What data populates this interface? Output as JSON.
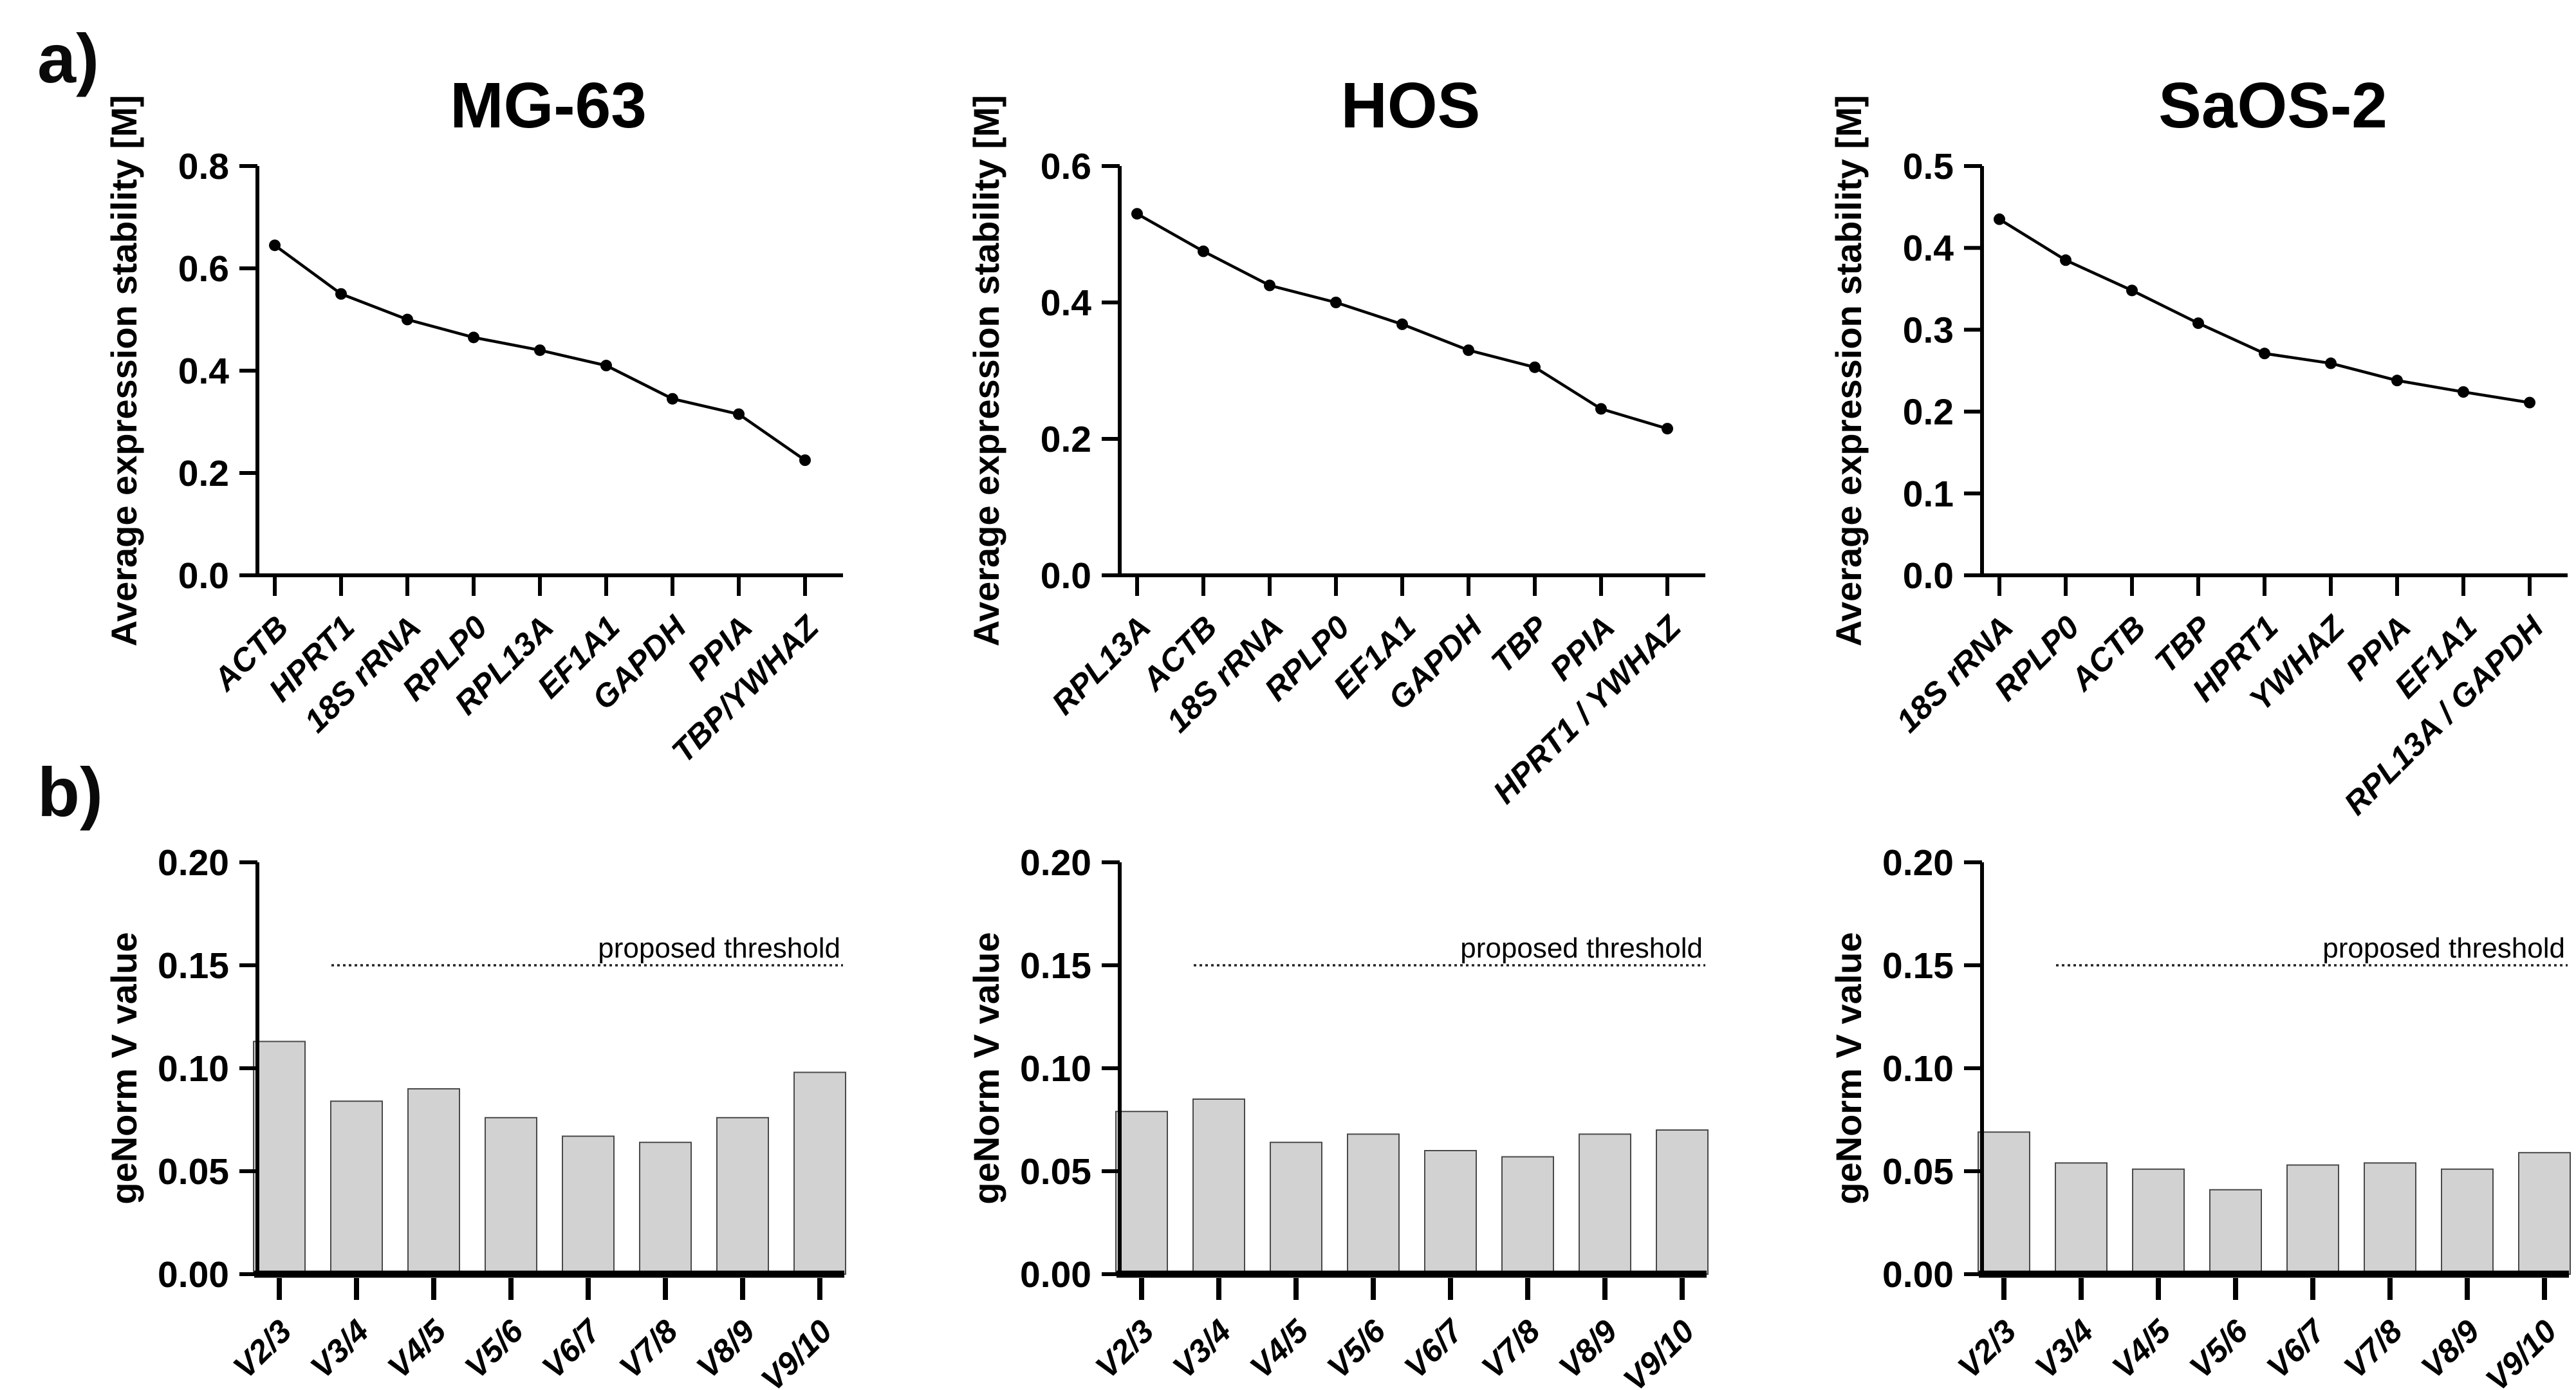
{
  "figure": {
    "panel_a_label": "a)",
    "panel_b_label": "b)",
    "colors": {
      "background": "#ffffff",
      "ink": "#000000",
      "bar_fill": "#d2d2d2",
      "bar_stroke": "#4a4a4a",
      "threshold_line": "#222222"
    }
  },
  "chart_data": [
    {
      "id": "mg63-stability",
      "panel": "a",
      "type": "line",
      "title": "MG-63",
      "ylabel": "Average expression stability [M]",
      "ylim": [
        0.0,
        0.8
      ],
      "grid": false,
      "yticks": [
        {
          "v": 0.0,
          "label": "0.0"
        },
        {
          "v": 0.2,
          "label": "0.2"
        },
        {
          "v": 0.4,
          "label": "0.4"
        },
        {
          "v": 0.6,
          "label": "0.6"
        },
        {
          "v": 0.8,
          "label": "0.8"
        }
      ],
      "categories": [
        "ACTB",
        "HPRT1",
        "18S rRNA",
        "RPLP0",
        "RPL13A",
        "EF1A1",
        "GAPDH",
        "PPIA",
        "TBP/YWHAZ"
      ],
      "values": [
        0.645,
        0.55,
        0.5,
        0.465,
        0.44,
        0.41,
        0.345,
        0.315,
        0.225
      ]
    },
    {
      "id": "hos-stability",
      "panel": "a",
      "type": "line",
      "title": "HOS",
      "ylabel": "Average expression stability [M]",
      "ylim": [
        0.0,
        0.6
      ],
      "grid": false,
      "yticks": [
        {
          "v": 0.0,
          "label": "0.0"
        },
        {
          "v": 0.2,
          "label": "0.2"
        },
        {
          "v": 0.4,
          "label": "0.4"
        },
        {
          "v": 0.6,
          "label": "0.6"
        }
      ],
      "categories": [
        "RPL13A",
        "ACTB",
        "18S rRNA",
        "RPLP0",
        "EF1A1",
        "GAPDH",
        "TBP",
        "PPIA",
        "HPRT1 / YWHAZ"
      ],
      "values": [
        0.53,
        0.475,
        0.425,
        0.4,
        0.368,
        0.33,
        0.305,
        0.244,
        0.215
      ]
    },
    {
      "id": "saos2-stability",
      "panel": "a",
      "type": "line",
      "title": "SaOS-2",
      "ylabel": "Average expression stability [M]",
      "ylim": [
        0.0,
        0.5
      ],
      "grid": false,
      "yticks": [
        {
          "v": 0.0,
          "label": "0.0"
        },
        {
          "v": 0.1,
          "label": "0.1"
        },
        {
          "v": 0.2,
          "label": "0.2"
        },
        {
          "v": 0.3,
          "label": "0.3"
        },
        {
          "v": 0.4,
          "label": "0.4"
        },
        {
          "v": 0.5,
          "label": "0.5"
        }
      ],
      "categories": [
        "18S rRNA",
        "RPLP0",
        "ACTB",
        "TBP",
        "HPRT1",
        "YWHAZ",
        "PPIA",
        "EF1A1",
        "RPL13A / GAPDH"
      ],
      "values": [
        0.435,
        0.385,
        0.348,
        0.308,
        0.271,
        0.259,
        0.238,
        0.224,
        0.211
      ]
    },
    {
      "id": "mg63-vvalue",
      "panel": "b",
      "type": "bar",
      "title": "",
      "ylabel": "geNorm V value",
      "ylim": [
        0.0,
        0.2
      ],
      "grid": false,
      "yticks": [
        {
          "v": 0.0,
          "label": "0.00"
        },
        {
          "v": 0.05,
          "label": "0.05"
        },
        {
          "v": 0.1,
          "label": "0.10"
        },
        {
          "v": 0.15,
          "label": "0.15"
        },
        {
          "v": 0.2,
          "label": "0.20"
        }
      ],
      "threshold": {
        "value": 0.15,
        "label": "proposed threshold"
      },
      "categories": [
        "V2/3",
        "V3/4",
        "V4/5",
        "V5/6",
        "V6/7",
        "V7/8",
        "V8/9",
        "V9/10"
      ],
      "values": [
        0.113,
        0.084,
        0.09,
        0.076,
        0.067,
        0.064,
        0.076,
        0.098
      ]
    },
    {
      "id": "hos-vvalue",
      "panel": "b",
      "type": "bar",
      "title": "",
      "ylabel": "geNorm V value",
      "ylim": [
        0.0,
        0.2
      ],
      "grid": false,
      "yticks": [
        {
          "v": 0.0,
          "label": "0.00"
        },
        {
          "v": 0.05,
          "label": "0.05"
        },
        {
          "v": 0.1,
          "label": "0.10"
        },
        {
          "v": 0.15,
          "label": "0.15"
        },
        {
          "v": 0.2,
          "label": "0.20"
        }
      ],
      "threshold": {
        "value": 0.15,
        "label": "proposed threshold"
      },
      "categories": [
        "V2/3",
        "V3/4",
        "V4/5",
        "V5/6",
        "V6/7",
        "V7/8",
        "V8/9",
        "V9/10"
      ],
      "values": [
        0.079,
        0.085,
        0.064,
        0.068,
        0.06,
        0.057,
        0.068,
        0.07
      ]
    },
    {
      "id": "saos2-vvalue",
      "panel": "b",
      "type": "bar",
      "title": "",
      "ylabel": "geNorm V value",
      "ylim": [
        0.0,
        0.2
      ],
      "grid": false,
      "yticks": [
        {
          "v": 0.0,
          "label": "0.00"
        },
        {
          "v": 0.05,
          "label": "0.05"
        },
        {
          "v": 0.1,
          "label": "0.10"
        },
        {
          "v": 0.15,
          "label": "0.15"
        },
        {
          "v": 0.2,
          "label": "0.20"
        }
      ],
      "threshold": {
        "value": 0.15,
        "label": "proposed threshold"
      },
      "categories": [
        "V2/3",
        "V3/4",
        "V4/5",
        "V5/6",
        "V6/7",
        "V7/8",
        "V8/9",
        "V9/10"
      ],
      "values": [
        0.069,
        0.054,
        0.051,
        0.041,
        0.053,
        0.054,
        0.051,
        0.059
      ]
    }
  ]
}
